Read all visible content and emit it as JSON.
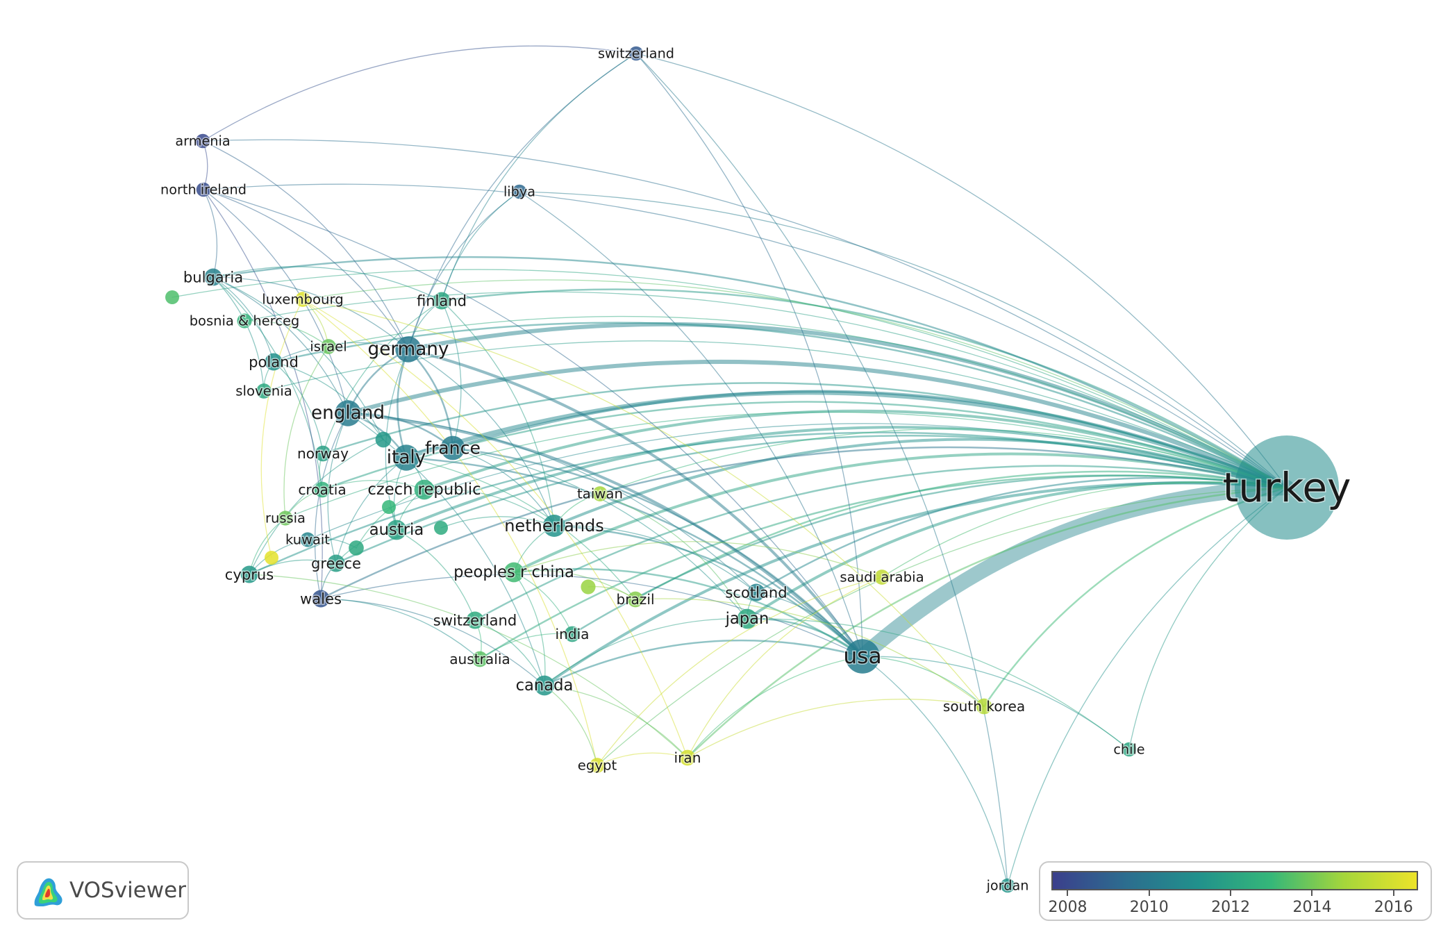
{
  "colormap": {
    "stops": [
      "#3b3f8c",
      "#2c6d8f",
      "#21918c",
      "#35b779",
      "#a5d63b",
      "#ece32a"
    ],
    "year_min": 2007.6,
    "year_max": 2016.6
  },
  "nodes": [
    {
      "id": "turkey",
      "label": "turkey",
      "weight": 100,
      "year": 2011.0
    },
    {
      "id": "usa",
      "label": "usa",
      "weight": 12,
      "year": 2010.2
    },
    {
      "id": "germany",
      "label": "germany",
      "weight": 6,
      "year": 2010.0
    },
    {
      "id": "england",
      "label": "england",
      "weight": 6,
      "year": 2010.1
    },
    {
      "id": "italy",
      "label": "italy",
      "weight": 6,
      "year": 2010.4
    },
    {
      "id": "france",
      "label": "france",
      "weight": 5,
      "year": 2010.2
    },
    {
      "id": "netherlands",
      "label": "netherlands",
      "weight": 4,
      "year": 2011.3
    },
    {
      "id": "czech_republic",
      "label": "czech republic",
      "weight": 3,
      "year": 2012.6
    },
    {
      "id": "austria",
      "label": "austria",
      "weight": 3,
      "year": 2012.0
    },
    {
      "id": "japan",
      "label": "japan",
      "weight": 3,
      "year": 2012.3
    },
    {
      "id": "canada",
      "label": "canada",
      "weight": 3,
      "year": 2011.5
    },
    {
      "id": "peoples_r_china",
      "label": "peoples r china",
      "weight": 3,
      "year": 2013.2
    },
    {
      "id": "switzerland_mid",
      "label": "switzerland",
      "weight": 2,
      "year": 2012.4
    },
    {
      "id": "greece",
      "label": "greece",
      "weight": 2,
      "year": 2011.8
    },
    {
      "id": "poland",
      "label": "poland",
      "weight": 2,
      "year": 2011.2
    },
    {
      "id": "finland",
      "label": "finland",
      "weight": 2,
      "year": 2012.2
    },
    {
      "id": "bulgaria",
      "label": "bulgaria",
      "weight": 2,
      "year": 2010.4
    },
    {
      "id": "scotland",
      "label": "scotland",
      "weight": 2,
      "year": 2010.5
    },
    {
      "id": "wales",
      "label": "wales",
      "weight": 2,
      "year": 2008.4
    },
    {
      "id": "cyprus",
      "label": "cyprus",
      "weight": 2,
      "year": 2011.6
    },
    {
      "id": "croatia",
      "label": "croatia",
      "weight": 1.5,
      "year": 2012.7
    },
    {
      "id": "norway",
      "label": "norway",
      "weight": 1.5,
      "year": 2011.9
    },
    {
      "id": "brazil",
      "label": "brazil",
      "weight": 1.5,
      "year": 2014.3
    },
    {
      "id": "india",
      "label": "india",
      "weight": 1.5,
      "year": 2012.1
    },
    {
      "id": "australia",
      "label": "australia",
      "weight": 1.5,
      "year": 2013.6
    },
    {
      "id": "iran",
      "label": "iran",
      "weight": 1.5,
      "year": 2016.0
    },
    {
      "id": "south_korea",
      "label": "south korea",
      "weight": 1.5,
      "year": 2015.2
    },
    {
      "id": "luxembourg",
      "label": "luxembourg",
      "weight": 1.3,
      "year": 2016.2
    },
    {
      "id": "slovenia",
      "label": "slovenia",
      "weight": 1.3,
      "year": 2012.3
    },
    {
      "id": "israel",
      "label": "israel",
      "weight": 1.3,
      "year": 2013.8
    },
    {
      "id": "taiwan",
      "label": "taiwan",
      "weight": 1.3,
      "year": 2014.8
    },
    {
      "id": "saudi_arabia",
      "label": "saudi arabia",
      "weight": 1.3,
      "year": 2015.5
    },
    {
      "id": "egypt",
      "label": "egypt",
      "weight": 1.3,
      "year": 2016.1
    },
    {
      "id": "russia",
      "label": "russia",
      "weight": 1.2,
      "year": 2013.9
    },
    {
      "id": "kuwait",
      "label": "kuwait",
      "weight": 1.2,
      "year": 2010.6
    },
    {
      "id": "bosnia_herceg",
      "label": "bosnia & herceg",
      "weight": 1.2,
      "year": 2012.8
    },
    {
      "id": "chile",
      "label": "chile",
      "weight": 1.1,
      "year": 2012.2
    },
    {
      "id": "jordan",
      "label": "jordan",
      "weight": 1.1,
      "year": 2011.4
    },
    {
      "id": "switzerland_top",
      "label": "switzerland",
      "weight": 1.1,
      "year": 2008.6
    },
    {
      "id": "armenia",
      "label": "armenia",
      "weight": 1.1,
      "year": 2008.0
    },
    {
      "id": "north_ireland",
      "label": "north ireland",
      "weight": 1.1,
      "year": 2008.1
    },
    {
      "id": "libya",
      "label": "libya",
      "weight": 1.1,
      "year": 2009.2
    },
    {
      "id": "unlabeled_a",
      "label": "",
      "weight": 1.0,
      "year": 2013.4
    },
    {
      "id": "unlabeled_b",
      "label": "",
      "weight": 1.5,
      "year": 2011.6
    },
    {
      "id": "unlabeled_c",
      "label": "",
      "weight": 1.3,
      "year": 2012.3
    },
    {
      "id": "unlabeled_d",
      "label": "",
      "weight": 1.0,
      "year": 2012.4
    },
    {
      "id": "unlabeled_e",
      "label": "",
      "weight": 1.2,
      "year": 2014.6
    },
    {
      "id": "unlabeled_f",
      "label": "",
      "weight": 1.0,
      "year": 2016.4
    },
    {
      "id": "unlabeled_g",
      "label": "",
      "weight": 1.0,
      "year": 2013.0
    }
  ],
  "links": [
    {
      "source": "turkey",
      "target": "usa",
      "strength": 10
    },
    {
      "source": "turkey",
      "target": "germany",
      "strength": 6
    },
    {
      "source": "turkey",
      "target": "england",
      "strength": 5
    },
    {
      "source": "turkey",
      "target": "italy",
      "strength": 5
    },
    {
      "source": "turkey",
      "target": "france",
      "strength": 4
    },
    {
      "source": "turkey",
      "target": "netherlands",
      "strength": 3
    },
    {
      "source": "turkey",
      "target": "czech_republic",
      "strength": 3
    },
    {
      "source": "turkey",
      "target": "austria",
      "strength": 3
    },
    {
      "source": "turkey",
      "target": "japan",
      "strength": 3
    },
    {
      "source": "turkey",
      "target": "canada",
      "strength": 3
    },
    {
      "source": "turkey",
      "target": "peoples_r_china",
      "strength": 3
    },
    {
      "source": "turkey",
      "target": "switzerland_mid",
      "strength": 2
    },
    {
      "source": "turkey",
      "target": "greece",
      "strength": 2
    },
    {
      "source": "turkey",
      "target": "poland",
      "strength": 2
    },
    {
      "source": "turkey",
      "target": "finland",
      "strength": 2
    },
    {
      "source": "turkey",
      "target": "bulgaria",
      "strength": 2
    },
    {
      "source": "turkey",
      "target": "scotland",
      "strength": 2
    },
    {
      "source": "turkey",
      "target": "wales",
      "strength": 2
    },
    {
      "source": "turkey",
      "target": "cyprus",
      "strength": 2
    },
    {
      "source": "turkey",
      "target": "croatia",
      "strength": 2
    },
    {
      "source": "turkey",
      "target": "norway",
      "strength": 2
    },
    {
      "source": "turkey",
      "target": "brazil",
      "strength": 2
    },
    {
      "source": "turkey",
      "target": "india",
      "strength": 2
    },
    {
      "source": "turkey",
      "target": "australia",
      "strength": 2
    },
    {
      "source": "turkey",
      "target": "iran",
      "strength": 2
    },
    {
      "source": "turkey",
      "target": "south_korea",
      "strength": 2
    },
    {
      "source": "turkey",
      "target": "luxembourg",
      "strength": 1
    },
    {
      "source": "turkey",
      "target": "slovenia",
      "strength": 1
    },
    {
      "source": "turkey",
      "target": "israel",
      "strength": 1
    },
    {
      "source": "turkey",
      "target": "taiwan",
      "strength": 1
    },
    {
      "source": "turkey",
      "target": "saudi_arabia",
      "strength": 1
    },
    {
      "source": "turkey",
      "target": "egypt",
      "strength": 1
    },
    {
      "source": "turkey",
      "target": "russia",
      "strength": 1
    },
    {
      "source": "turkey",
      "target": "kuwait",
      "strength": 1
    },
    {
      "source": "turkey",
      "target": "bosnia_herceg",
      "strength": 1
    },
    {
      "source": "turkey",
      "target": "chile",
      "strength": 1
    },
    {
      "source": "turkey",
      "target": "jordan",
      "strength": 1
    },
    {
      "source": "turkey",
      "target": "switzerland_top",
      "strength": 1
    },
    {
      "source": "turkey",
      "target": "armenia",
      "strength": 1
    },
    {
      "source": "turkey",
      "target": "north_ireland",
      "strength": 1
    },
    {
      "source": "turkey",
      "target": "libya",
      "strength": 1
    },
    {
      "source": "turkey",
      "target": "unlabeled_a",
      "strength": 1
    },
    {
      "source": "usa",
      "target": "germany",
      "strength": 3
    },
    {
      "source": "usa",
      "target": "england",
      "strength": 3
    },
    {
      "source": "usa",
      "target": "italy",
      "strength": 2
    },
    {
      "source": "usa",
      "target": "france",
      "strength": 2
    },
    {
      "source": "usa",
      "target": "canada",
      "strength": 2
    },
    {
      "source": "usa",
      "target": "netherlands",
      "strength": 2
    },
    {
      "source": "usa",
      "target": "japan",
      "strength": 2
    },
    {
      "source": "usa",
      "target": "peoples_r_china",
      "strength": 2
    },
    {
      "source": "usa",
      "target": "jordan",
      "strength": 1
    },
    {
      "source": "usa",
      "target": "chile",
      "strength": 1
    },
    {
      "source": "usa",
      "target": "south_korea",
      "strength": 1
    },
    {
      "source": "usa",
      "target": "iran",
      "strength": 1
    },
    {
      "source": "usa",
      "target": "wales",
      "strength": 1
    },
    {
      "source": "usa",
      "target": "north_ireland",
      "strength": 1
    },
    {
      "source": "usa",
      "target": "switzerland_top",
      "strength": 1
    },
    {
      "source": "usa",
      "target": "scotland",
      "strength": 1
    },
    {
      "source": "germany",
      "target": "england",
      "strength": 2
    },
    {
      "source": "germany",
      "target": "italy",
      "strength": 2
    },
    {
      "source": "germany",
      "target": "france",
      "strength": 2
    },
    {
      "source": "germany",
      "target": "finland",
      "strength": 1
    },
    {
      "source": "germany",
      "target": "switzerland_top",
      "strength": 1
    },
    {
      "source": "germany",
      "target": "armenia",
      "strength": 1
    },
    {
      "source": "germany",
      "target": "north_ireland",
      "strength": 1
    },
    {
      "source": "germany",
      "target": "bulgaria",
      "strength": 1
    },
    {
      "source": "germany",
      "target": "poland",
      "strength": 1
    },
    {
      "source": "germany",
      "target": "austria",
      "strength": 1
    },
    {
      "source": "germany",
      "target": "netherlands",
      "strength": 1
    },
    {
      "source": "germany",
      "target": "libya",
      "strength": 1
    },
    {
      "source": "england",
      "target": "italy",
      "strength": 2
    },
    {
      "source": "england",
      "target": "france",
      "strength": 2
    },
    {
      "source": "england",
      "target": "bulgaria",
      "strength": 1
    },
    {
      "source": "england",
      "target": "north_ireland",
      "strength": 1
    },
    {
      "source": "england",
      "target": "wales",
      "strength": 1
    },
    {
      "source": "england",
      "target": "scotland",
      "strength": 1
    },
    {
      "source": "england",
      "target": "greece",
      "strength": 1
    },
    {
      "source": "england",
      "target": "canada",
      "strength": 1
    },
    {
      "source": "italy",
      "target": "france",
      "strength": 2
    },
    {
      "source": "italy",
      "target": "czech_republic",
      "strength": 1
    },
    {
      "source": "italy",
      "target": "austria",
      "strength": 1
    },
    {
      "source": "italy",
      "target": "greece",
      "strength": 1
    },
    {
      "source": "italy",
      "target": "brazil",
      "strength": 1
    },
    {
      "source": "france",
      "target": "netherlands",
      "strength": 1
    },
    {
      "source": "france",
      "target": "finland",
      "strength": 1
    },
    {
      "source": "france",
      "target": "japan",
      "strength": 1
    },
    {
      "source": "finland",
      "target": "switzerland_top",
      "strength": 1
    },
    {
      "source": "finland",
      "target": "libya",
      "strength": 1
    },
    {
      "source": "finland",
      "target": "bulgaria",
      "strength": 1
    },
    {
      "source": "finland",
      "target": "norway",
      "strength": 1
    },
    {
      "source": "finland",
      "target": "netherlands",
      "strength": 1
    },
    {
      "source": "bulgaria",
      "target": "poland",
      "strength": 1
    },
    {
      "source": "bulgaria",
      "target": "unlabeled_b",
      "strength": 1
    },
    {
      "source": "bulgaria",
      "target": "slovenia",
      "strength": 1
    },
    {
      "source": "bulgaria",
      "target": "croatia",
      "strength": 1
    },
    {
      "source": "north_ireland",
      "target": "armenia",
      "strength": 1
    },
    {
      "source": "north_ireland",
      "target": "bulgaria",
      "strength": 1
    },
    {
      "source": "north_ireland",
      "target": "wales",
      "strength": 1
    },
    {
      "source": "luxembourg",
      "target": "israel",
      "strength": 1
    },
    {
      "source": "luxembourg",
      "target": "iran",
      "strength": 1
    },
    {
      "source": "luxembourg",
      "target": "egypt",
      "strength": 1
    },
    {
      "source": "luxembourg",
      "target": "south_korea",
      "strength": 1
    },
    {
      "source": "cyprus",
      "target": "greece",
      "strength": 1
    },
    {
      "source": "cyprus",
      "target": "russia",
      "strength": 1
    },
    {
      "source": "cyprus",
      "target": "kuwait",
      "strength": 1
    },
    {
      "source": "cyprus",
      "target": "iran",
      "strength": 1
    },
    {
      "source": "greece",
      "target": "wales",
      "strength": 1
    },
    {
      "source": "greece",
      "target": "austria",
      "strength": 1
    },
    {
      "source": "wales",
      "target": "canada",
      "strength": 1
    },
    {
      "source": "wales",
      "target": "australia",
      "strength": 1
    },
    {
      "source": "austria",
      "target": "czech_republic",
      "strength": 1
    },
    {
      "source": "austria",
      "target": "switzerland_mid",
      "strength": 1
    },
    {
      "source": "czech_republic",
      "target": "netherlands",
      "strength": 1
    },
    {
      "source": "czech_republic",
      "target": "croatia",
      "strength": 1
    },
    {
      "source": "netherlands",
      "target": "peoples_r_china",
      "strength": 1
    },
    {
      "source": "netherlands",
      "target": "taiwan",
      "strength": 1
    },
    {
      "source": "netherlands",
      "target": "scotland",
      "strength": 1
    },
    {
      "source": "peoples_r_china",
      "target": "india",
      "strength": 1
    },
    {
      "source": "peoples_r_china",
      "target": "brazil",
      "strength": 1
    },
    {
      "source": "peoples_r_china",
      "target": "canada",
      "strength": 1
    },
    {
      "source": "peoples_r_china",
      "target": "saudi_arabia",
      "strength": 1
    },
    {
      "source": "switzerland_mid",
      "target": "australia",
      "strength": 1
    },
    {
      "source": "switzerland_mid",
      "target": "canada",
      "strength": 1
    },
    {
      "source": "canada",
      "target": "egypt",
      "strength": 1
    },
    {
      "source": "canada",
      "target": "iran",
      "strength": 1
    },
    {
      "source": "canada",
      "target": "japan",
      "strength": 1
    },
    {
      "source": "iran",
      "target": "egypt",
      "strength": 1
    },
    {
      "source": "iran",
      "target": "south_korea",
      "strength": 1
    },
    {
      "source": "iran",
      "target": "saudi_arabia",
      "strength": 1
    },
    {
      "source": "egypt",
      "target": "saudi_arabia",
      "strength": 1
    },
    {
      "source": "japan",
      "target": "scotland",
      "strength": 1
    },
    {
      "source": "japan",
      "target": "taiwan",
      "strength": 1
    },
    {
      "source": "japan",
      "target": "chile",
      "strength": 1
    },
    {
      "source": "india",
      "target": "australia",
      "strength": 1
    },
    {
      "source": "brazil",
      "target": "south_korea",
      "strength": 1
    },
    {
      "source": "brazil",
      "target": "unlabeled_e",
      "strength": 1
    },
    {
      "source": "poland",
      "target": "slovenia",
      "strength": 1
    },
    {
      "source": "poland",
      "target": "norway",
      "strength": 1
    },
    {
      "source": "croatia",
      "target": "norway",
      "strength": 1
    },
    {
      "source": "croatia",
      "target": "russia",
      "strength": 1
    },
    {
      "source": "israel",
      "target": "russia",
      "strength": 1
    },
    {
      "source": "israel",
      "target": "bosnia_herceg",
      "strength": 1
    },
    {
      "source": "kuwait",
      "target": "unlabeled_c",
      "strength": 1
    },
    {
      "source": "unlabeled_b",
      "target": "poland",
      "strength": 1
    },
    {
      "source": "unlabeled_b",
      "target": "cyprus",
      "strength": 1
    },
    {
      "source": "unlabeled_c",
      "target": "czech_republic",
      "strength": 1
    },
    {
      "source": "unlabeled_d",
      "target": "netherlands",
      "strength": 1
    },
    {
      "source": "unlabeled_f",
      "target": "luxembourg",
      "strength": 1
    },
    {
      "source": "unlabeled_g",
      "target": "austria",
      "strength": 1
    },
    {
      "source": "armenia",
      "target": "switzerland_top",
      "strength": 1
    },
    {
      "source": "libya",
      "target": "usa",
      "strength": 1
    },
    {
      "source": "switzerland_top",
      "target": "jordan",
      "strength": 1
    }
  ],
  "logo": {
    "text": "VOSviewer",
    "icon": "vosviewer-logo-icon"
  },
  "legend": {
    "ticks": [
      {
        "label": "2008",
        "value": 2008
      },
      {
        "label": "2010",
        "value": 2010
      },
      {
        "label": "2012",
        "value": 2012
      },
      {
        "label": "2014",
        "value": 2014
      },
      {
        "label": "2016",
        "value": 2016
      }
    ]
  }
}
